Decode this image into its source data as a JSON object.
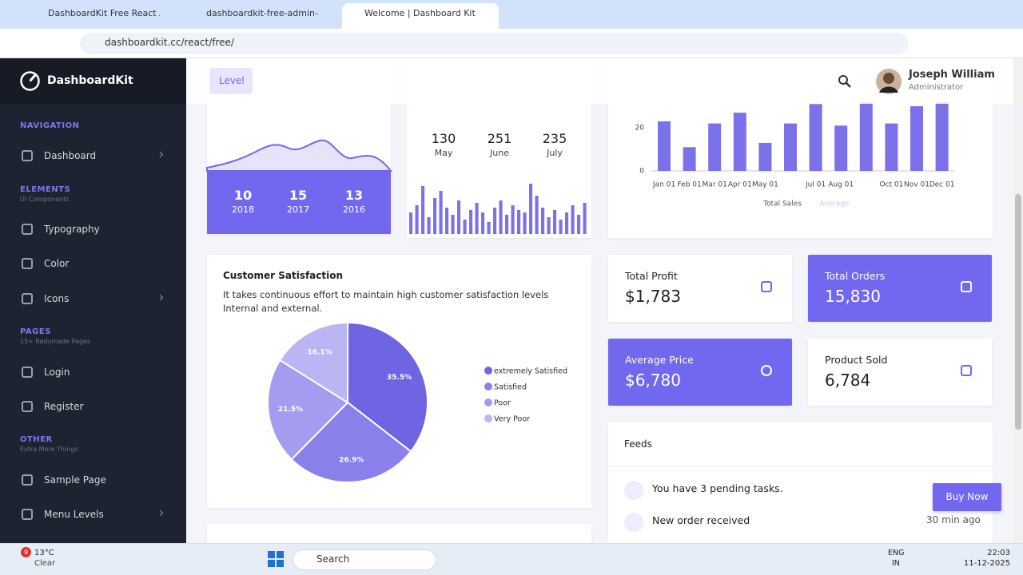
{
  "browser": {
    "tabs": [
      "DashboardKit Free React Admin",
      "dashboardkit-free-admin-temp",
      "Welcome | Dashboard Kit Free"
    ],
    "url": "dashboardkit.cc/react/free/"
  },
  "sidebar": {
    "brand": "DashboardKit",
    "sections": [
      {
        "title": "NAVIGATION",
        "items": [
          "Dashboard"
        ]
      },
      {
        "title": "ELEMENTS",
        "subtitle": "UI Components",
        "items": [
          "Typography",
          "Color",
          "Icons"
        ]
      },
      {
        "title": "PAGES",
        "subtitle": "15+ Redymade Pages",
        "items": [
          "Login",
          "Register"
        ]
      },
      {
        "title": "OTHER",
        "subtitle": "Extra More Things",
        "items": [
          "Sample Page",
          "Menu Levels"
        ]
      }
    ]
  },
  "header": {
    "menu": "Level",
    "user_name": "Joseph William",
    "user_role": "Administrator"
  },
  "year_card": {
    "stats": [
      {
        "value": 10,
        "label": 2018
      },
      {
        "value": 15,
        "label": 2017
      },
      {
        "value": 13,
        "label": 2016
      }
    ]
  },
  "month_card": {
    "stats": [
      {
        "value": 130,
        "label": "May"
      },
      {
        "value": 251,
        "label": "June"
      },
      {
        "value": 235,
        "label": "July"
      }
    ],
    "bar_values": [
      45,
      60,
      100,
      35,
      75,
      90,
      55,
      40,
      70,
      30,
      50,
      65,
      45,
      25,
      55,
      70,
      40,
      60,
      50,
      45,
      105,
      80,
      55,
      35,
      50,
      30,
      45,
      60,
      40,
      65
    ]
  },
  "sales_chart": {
    "type": "bar",
    "categories": [
      "Jan 01",
      "Feb 01",
      "Mar 01",
      "Apr 01",
      "May 01",
      null,
      "Jul 01",
      "Aug 01",
      null,
      "Oct 01",
      "Nov 01",
      "Dec 01"
    ],
    "series": [
      {
        "name": "Total Sales",
        "color": "#7b72e9",
        "values": [
          23,
          11,
          22,
          27,
          13,
          22,
          31,
          21,
          32,
          22,
          30,
          32
        ]
      },
      {
        "name": "Average",
        "color": "#bcd0f2"
      }
    ],
    "ylim": [
      0,
      40
    ],
    "yticks": [
      0,
      20
    ]
  },
  "satisfaction": {
    "type": "pie",
    "title": "Customer Satisfaction",
    "description": "It takes continuous effort to maintain high customer satisfaction levels Internal and external.",
    "categories": [
      "extremely Satisfied",
      "Satisfied",
      "Poor",
      "Very Poor"
    ],
    "values": [
      35.5,
      26.9,
      21.5,
      16.1
    ],
    "value_labels": [
      "35.5%",
      "26.9%",
      "21.5%",
      "16.1%"
    ],
    "colors": [
      "#6f64e2",
      "#8a80ea",
      "#a49cf0",
      "#bbb5f4"
    ]
  },
  "stats": [
    {
      "title": "Total Profit",
      "value": "$1,783"
    },
    {
      "title": "Total Orders",
      "value": "15,830"
    },
    {
      "title": "Average Price",
      "value": "$6,780"
    },
    {
      "title": "Product Sold",
      "value": "6,784"
    }
  ],
  "feeds": {
    "title": "Feeds",
    "items": [
      {
        "text": "You have 3 pending tasks."
      },
      {
        "text": "New order received",
        "time": "30 min ago"
      }
    ]
  },
  "buy_now": "Buy Now",
  "taskbar": {
    "weather_badge": 9,
    "temperature": "13°C",
    "condition": "Clear",
    "search": "Search",
    "language": [
      "ENG",
      "IN"
    ],
    "time": "22:03",
    "date": "11-12-2025"
  }
}
